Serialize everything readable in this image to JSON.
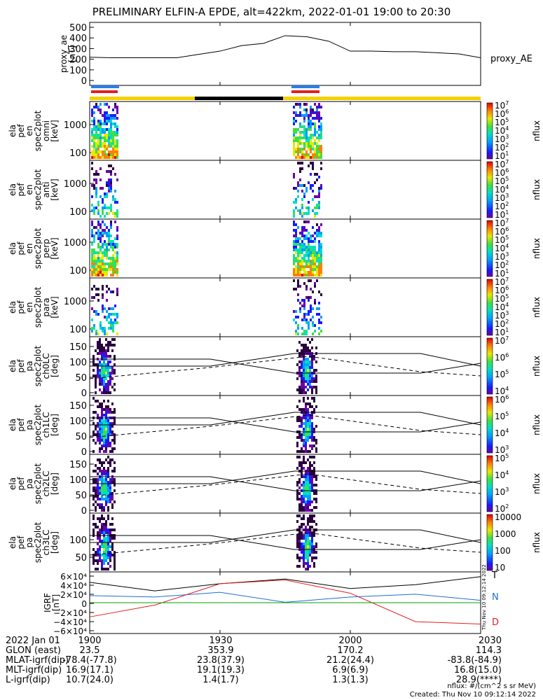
{
  "title": "PRELIMINARY ELFIN-A EPDE, alt=422km, 2022-01-01 19:00 to 20:30",
  "colors": {
    "black": "#000000",
    "blue": "#1f6fd1",
    "red": "#e02020",
    "yellow": "#f5d000",
    "bar_blue": "#2a7ee8",
    "bar_red": "#e0231f",
    "green": "#00a000"
  },
  "panels": {
    "ae": {
      "ylabel_lines": [
        "proxy_ae",
        "[nT]"
      ],
      "right_label": "proxy_AE",
      "ticks": [
        "500",
        "400",
        "300",
        "200",
        "100",
        "0"
      ],
      "ylim": [
        -50,
        520
      ]
    },
    "spec": [
      {
        "ylabel_lines": [
          "ela",
          "pef",
          "en",
          "spec2plot",
          "omni",
          "[keV]"
        ],
        "ticks": [
          "1000",
          "100"
        ],
        "cbar_ticks": [
          "10",
          "10",
          "10",
          "10",
          "10",
          "10",
          "10"
        ],
        "cbar_exps": [
          "7",
          "6",
          "5",
          "4",
          "3",
          "2",
          "1"
        ],
        "cbar_label": "nflux"
      },
      {
        "ylabel_lines": [
          "ela",
          "pef",
          "en",
          "spec2plot",
          "anti",
          "[keV]"
        ],
        "ticks": [
          "1000",
          "100"
        ],
        "cbar_ticks": [
          "10",
          "10",
          "10",
          "10",
          "10",
          "10",
          "10"
        ],
        "cbar_exps": [
          "7",
          "6",
          "5",
          "4",
          "3",
          "2",
          "1"
        ],
        "cbar_label": "nflux"
      },
      {
        "ylabel_lines": [
          "ela",
          "pef",
          "en",
          "spec2plot",
          "perp",
          "[keV]"
        ],
        "ticks": [
          "1000",
          "100"
        ],
        "cbar_ticks": [
          "10",
          "10",
          "10",
          "10",
          "10",
          "10",
          "10"
        ],
        "cbar_exps": [
          "7",
          "6",
          "5",
          "4",
          "3",
          "2",
          "1"
        ],
        "cbar_label": "nflux"
      },
      {
        "ylabel_lines": [
          "ela",
          "pef",
          "en",
          "spec2plot",
          "para",
          "[keV]"
        ],
        "ticks": [
          "1000",
          "100"
        ],
        "cbar_ticks": [
          "10",
          "10",
          "10",
          "10",
          "10",
          "10",
          "10"
        ],
        "cbar_exps": [
          "7",
          "6",
          "5",
          "4",
          "3",
          "2",
          "1"
        ],
        "cbar_label": "nflux"
      }
    ],
    "pa": [
      {
        "ylabel_lines": [
          "ela",
          "pef",
          "pa",
          "spec2plot",
          "ch0LC",
          "[deg]"
        ],
        "ticks": [
          "150",
          "100",
          "50",
          "0"
        ],
        "cbar_ticks": [
          "10",
          "10",
          "10",
          "10"
        ],
        "cbar_exps": [
          "7",
          "6",
          "5",
          "4"
        ],
        "cbar_label": "nflux"
      },
      {
        "ylabel_lines": [
          "ela",
          "pef",
          "pa",
          "spec2plot",
          "ch1LC",
          "[deg]"
        ],
        "ticks": [
          "150",
          "100",
          "50",
          "0"
        ],
        "cbar_ticks": [
          "10",
          "10",
          "10",
          "10"
        ],
        "cbar_exps": [
          "6",
          "5",
          "4",
          "3"
        ],
        "cbar_label": "nflux"
      },
      {
        "ylabel_lines": [
          "ela",
          "pef",
          "pa",
          "spec2plot",
          "ch2LC",
          "[deg]"
        ],
        "ticks": [
          "150",
          "100",
          "50",
          "0"
        ],
        "cbar_ticks": [
          "10",
          "10",
          "10",
          "10"
        ],
        "cbar_exps": [
          "5",
          "4",
          "3",
          "2"
        ],
        "cbar_label": "nflux"
      },
      {
        "ylabel_lines": [
          "ela",
          "pef",
          "pa",
          "spec2plot",
          "ch3LC",
          "[deg]"
        ],
        "ticks": [
          "100",
          "50"
        ],
        "cbar_ticks": [
          "10000",
          "1000",
          "100",
          "10"
        ],
        "cbar_exps": [
          "",
          "",
          "",
          ""
        ],
        "cbar_label": "nflux"
      }
    ],
    "igrf": {
      "ylabel_lines": [
        "IGRF",
        "[nT]"
      ],
      "ticks": [
        "6×10⁴",
        "4×10⁴",
        "2×10⁴",
        "0",
        "−2×10⁴",
        "−4×10⁴",
        "−6×10⁴"
      ],
      "right_labels": [
        "T",
        "N",
        "D"
      ],
      "side_text": "Thu Nov 10 09:12:14 2022"
    }
  },
  "xaxis_ticks": [
    "1900",
    "1930",
    "2000",
    "2030"
  ],
  "footer_rows": [
    {
      "label": "2022 Jan 01",
      "values": [
        "1900",
        "1930",
        "2000",
        "2030"
      ]
    },
    {
      "label": "GLON (east)",
      "values": [
        "23.5",
        "353.9",
        "170.2",
        "114.3"
      ]
    },
    {
      "label": "MLAT-igrf(dip)",
      "values": [
        "-78.4(-77.8)",
        "23.8(37.9)",
        "21.2(24.4)",
        "-83.8(-84.9)"
      ]
    },
    {
      "label": "MLT-igrf(dip)",
      "values": [
        "16.9(17.1)",
        "19.1(19.3)",
        "6.9(6.9)",
        "16.8(15.0)"
      ]
    },
    {
      "label": "L-igrf(dip)",
      "values": [
        "10.7(24.0)",
        "1.4(1.7)",
        "1.3(1.3)",
        "28.9(****)"
      ]
    }
  ],
  "footnote1": "nflux: #/(cm^2 s sr MeV)",
  "footnote2": "Created: Thu Nov 10 09:12:14 2022",
  "chart_data": [
    {
      "type": "line",
      "title": "",
      "series": [
        {
          "name": "proxy_AE",
          "x": [
            "19:00",
            "19:05",
            "19:10",
            "19:15",
            "19:20",
            "19:25",
            "19:30",
            "19:35",
            "19:40",
            "19:45",
            "19:50",
            "19:55",
            "20:00",
            "20:05",
            "20:10",
            "20:15",
            "20:20",
            "20:25",
            "20:30"
          ],
          "values": [
            205,
            200,
            200,
            200,
            200,
            230,
            260,
            310,
            330,
            400,
            390,
            350,
            260,
            260,
            255,
            255,
            245,
            235,
            200
          ]
        }
      ],
      "ylim": [
        -50,
        520
      ]
    },
    {
      "type": "heatmap",
      "title": "",
      "series": [
        {
          "name": "omni",
          "x_ranges": [
            [
              "19:01",
              "19:09"
            ],
            [
              "19:56",
              "20:02"
            ]
          ]
        }
      ]
    },
    {
      "type": "line",
      "title": "",
      "series": [
        {
          "name": "T",
          "x": [
            "19:00",
            "19:15",
            "19:30",
            "19:45",
            "20:00",
            "20:15",
            "20:30"
          ],
          "values": [
            43000,
            25000,
            40000,
            50000,
            30000,
            38000,
            55000
          ]
        },
        {
          "name": "N",
          "x": [
            "19:00",
            "19:15",
            "19:30",
            "19:45",
            "20:00",
            "20:15",
            "20:30"
          ],
          "values": [
            15000,
            12000,
            22000,
            1000,
            12000,
            18000,
            5000
          ]
        },
        {
          "name": "D",
          "x": [
            "19:00",
            "19:15",
            "19:30",
            "19:45",
            "20:00",
            "20:15",
            "20:30"
          ],
          "values": [
            -30000,
            -5000,
            40000,
            48000,
            20000,
            -40000,
            -45000
          ]
        }
      ],
      "ylim": [
        -65000,
        65000
      ]
    }
  ]
}
